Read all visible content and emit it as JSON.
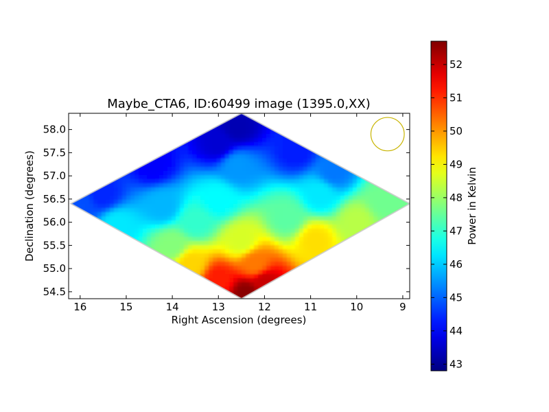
{
  "chart_data": {
    "type": "heatmap",
    "title": "Maybe_CTA6, ID:60499 image (1395.0,XX)",
    "xlabel": "Right Ascension (degrees)",
    "ylabel": "Declination (degrees)",
    "xlim": [
      16.25,
      8.85
    ],
    "ylim": [
      54.35,
      58.35
    ],
    "x_reversed": true,
    "x_ticks": [
      16,
      15,
      14,
      13,
      12,
      11,
      10,
      9
    ],
    "x_tick_labels": [
      "16",
      "15",
      "14",
      "13",
      "12",
      "11",
      "10",
      "9"
    ],
    "y_ticks": [
      54.5,
      55.0,
      55.5,
      56.0,
      56.5,
      57.0,
      57.5,
      58.0
    ],
    "y_tick_labels": [
      "54.5",
      "55.0",
      "55.5",
      "56.0",
      "56.5",
      "57.0",
      "57.5",
      "58.0"
    ],
    "colormap": "jet",
    "colorbar": {
      "label": "Power in Kelvin",
      "range": [
        42.8,
        52.7
      ],
      "ticks": [
        43,
        44,
        45,
        46,
        47,
        48,
        49,
        50,
        51,
        52
      ],
      "tick_labels": [
        "43",
        "44",
        "45",
        "46",
        "47",
        "48",
        "49",
        "50",
        "51",
        "52"
      ]
    },
    "footprint": {
      "shape": "diamond",
      "vertices_ra_dec": [
        [
          12.5,
          58.35
        ],
        [
          8.85,
          56.4
        ],
        [
          12.5,
          54.35
        ],
        [
          16.2,
          56.4
        ]
      ]
    },
    "field_samples": [
      {
        "ra": 12.6,
        "dec": 58.05,
        "value": 43.3
      },
      {
        "ra": 13.0,
        "dec": 57.7,
        "value": 43.6
      },
      {
        "ra": 14.4,
        "dec": 57.25,
        "value": 44.0
      },
      {
        "ra": 15.5,
        "dec": 56.6,
        "value": 44.4
      },
      {
        "ra": 16.0,
        "dec": 56.35,
        "value": 44.8
      },
      {
        "ra": 11.3,
        "dec": 57.55,
        "value": 44.3
      },
      {
        "ra": 10.5,
        "dec": 57.1,
        "value": 45.2
      },
      {
        "ra": 12.6,
        "dec": 57.2,
        "value": 45.5
      },
      {
        "ra": 14.2,
        "dec": 56.35,
        "value": 45.8
      },
      {
        "ra": 15.2,
        "dec": 55.95,
        "value": 46.3
      },
      {
        "ra": 13.0,
        "dec": 56.5,
        "value": 46.5
      },
      {
        "ra": 10.8,
        "dec": 56.6,
        "value": 46.3
      },
      {
        "ra": 9.4,
        "dec": 56.45,
        "value": 47.6
      },
      {
        "ra": 13.5,
        "dec": 56.0,
        "value": 47.0
      },
      {
        "ra": 11.5,
        "dec": 56.1,
        "value": 47.4
      },
      {
        "ra": 10.0,
        "dec": 56.0,
        "value": 48.3
      },
      {
        "ra": 14.0,
        "dec": 55.5,
        "value": 47.8
      },
      {
        "ra": 12.5,
        "dec": 55.6,
        "value": 48.6
      },
      {
        "ra": 10.9,
        "dec": 55.6,
        "value": 49.3
      },
      {
        "ra": 13.6,
        "dec": 55.1,
        "value": 49.4
      },
      {
        "ra": 12.2,
        "dec": 55.1,
        "value": 50.3
      },
      {
        "ra": 13.0,
        "dec": 54.75,
        "value": 51.2
      },
      {
        "ra": 12.0,
        "dec": 54.7,
        "value": 52.0
      },
      {
        "ra": 12.4,
        "dec": 54.45,
        "value": 52.6
      }
    ],
    "beam_marker": {
      "ra": 9.33,
      "dec": 57.9,
      "radius_deg": 0.36,
      "color": "#c8b400"
    },
    "grid": false
  }
}
